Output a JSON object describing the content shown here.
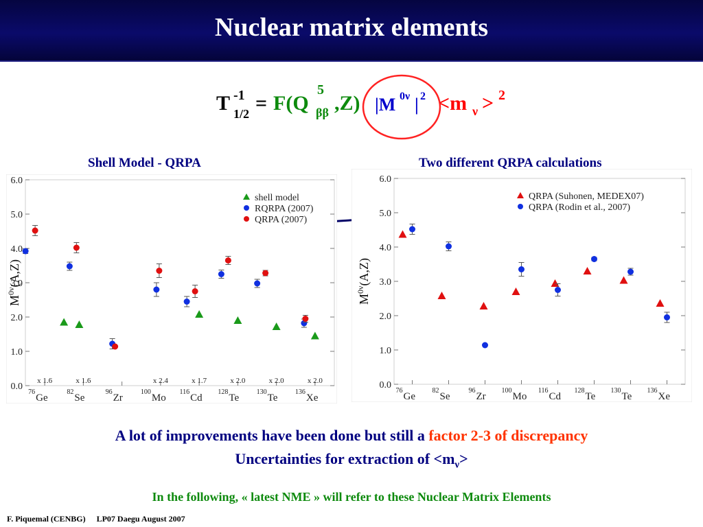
{
  "slide": {
    "title": "Nuclear matrix elements",
    "formula": {
      "T": "T",
      "T_sup": "-1",
      "T_sub": "1/2",
      "eq": "=",
      "F_open": "F(Q",
      "F_sub": "ββ",
      "F_close": ",Z)",
      "F_sup": "5",
      "M_open": "|M",
      "M_sup": "0ν",
      "M_close": "|",
      "M_sq": "2",
      "m_open": "<m",
      "m_sub": "ν",
      "m_close": ">",
      "m_sq": "2"
    },
    "caption_left": "Shell Model - QRPA",
    "caption_right": "Two different QRPA calculations",
    "bottom": {
      "line1_a": "A lot of improvements have been done but still a ",
      "line1_b": "factor 2-3 of discrepancy",
      "line2_a": "Uncertainties for extraction of <m",
      "line2_sub": "ν",
      "line2_b": ">",
      "line3": "In the following, « latest NME » will refer to these Nuclear Matrix Elements"
    },
    "footer": {
      "author": "F. Piquemal (CENBG)",
      "conf": "LP07 Daegu August 2007"
    },
    "colors": {
      "header": "#0a0a6a",
      "green": "#0d8a0d",
      "blue": "#0000cc",
      "red": "#ff0000",
      "navy": "#000080"
    }
  },
  "chart_data": [
    {
      "type": "scatter",
      "ylabel_main": "M",
      "ylabel_sup": "0ν",
      "ylabel_rest": "(A,Z)",
      "ylim": [
        0.0,
        6.0
      ],
      "yticks": [
        "0.0",
        "1.0",
        "2.0",
        "3.0",
        "4.0",
        "5.0",
        "6.0"
      ],
      "categories": [
        {
          "mass": "76",
          "el": "Ge"
        },
        {
          "mass": "82",
          "el": "Se"
        },
        {
          "mass": "96",
          "el": "Zr"
        },
        {
          "mass": "100",
          "el": "Mo"
        },
        {
          "mass": "116",
          "el": "Cd"
        },
        {
          "mass": "128",
          "el": "Te"
        },
        {
          "mass": "130",
          "el": "Te"
        },
        {
          "mass": "136",
          "el": "Xe"
        }
      ],
      "multipliers": [
        "x 1.6",
        "x 1.6",
        "",
        "x 2.4",
        "x 1.7",
        "x 2.0",
        "x 2.0",
        "x 2.0"
      ],
      "legend": [
        "shell model",
        "RQRPA (2007)",
        "QRPA (2007)"
      ],
      "series": [
        {
          "name": "shell model",
          "marker": "triangle",
          "color": "#1a9a1a",
          "points": [
            {
              "x": 0,
              "y": 1.85,
              "err": 0
            },
            {
              "x": 1,
              "y": 1.78,
              "err": 0
            },
            {
              "x": 4,
              "y": 2.08,
              "err": 0
            },
            {
              "x": 5,
              "y": 1.9,
              "err": 0
            },
            {
              "x": 6,
              "y": 1.72,
              "err": 0
            },
            {
              "x": 7,
              "y": 1.45,
              "err": 0
            }
          ]
        },
        {
          "name": "RQRPA (2007)",
          "marker": "circle",
          "color": "#1030e0",
          "points": [
            {
              "x": 0,
              "y": 3.92,
              "err": 0.07
            },
            {
              "x": 1,
              "y": 3.48,
              "err": 0.12
            },
            {
              "x": 2,
              "y": 1.22,
              "err": 0.15
            },
            {
              "x": 3,
              "y": 2.8,
              "err": 0.2
            },
            {
              "x": 4,
              "y": 2.45,
              "err": 0.15
            },
            {
              "x": 5,
              "y": 3.25,
              "err": 0.12
            },
            {
              "x": 6,
              "y": 2.98,
              "err": 0.12
            },
            {
              "x": 7,
              "y": 1.82,
              "err": 0.12
            }
          ]
        },
        {
          "name": "QRPA (2007)",
          "marker": "circle",
          "color": "#e01010",
          "points": [
            {
              "x": 0,
              "y": 4.52,
              "err": 0.15
            },
            {
              "x": 1,
              "y": 4.02,
              "err": 0.15
            },
            {
              "x": 2,
              "y": 1.14,
              "err": 0
            },
            {
              "x": 3,
              "y": 3.35,
              "err": 0.2
            },
            {
              "x": 4,
              "y": 2.75,
              "err": 0.18
            },
            {
              "x": 5,
              "y": 3.65,
              "err": 0.12
            },
            {
              "x": 6,
              "y": 3.28,
              "err": 0.08
            },
            {
              "x": 7,
              "y": 1.95,
              "err": 0.1
            }
          ]
        }
      ]
    },
    {
      "type": "scatter",
      "ylabel_main": "M",
      "ylabel_sup": "0ν",
      "ylabel_rest": "(A,Z)",
      "ylim": [
        0.0,
        6.0
      ],
      "yticks": [
        "0.0",
        "1.0",
        "2.0",
        "3.0",
        "4.0",
        "5.0",
        "6.0"
      ],
      "categories": [
        {
          "mass": "76",
          "el": "Ge"
        },
        {
          "mass": "82",
          "el": "Se"
        },
        {
          "mass": "96",
          "el": "Zr"
        },
        {
          "mass": "100",
          "el": "Mo"
        },
        {
          "mass": "116",
          "el": "Cd"
        },
        {
          "mass": "128",
          "el": "Te"
        },
        {
          "mass": "130",
          "el": "Te"
        },
        {
          "mass": "136",
          "el": "Xe"
        }
      ],
      "legend": [
        "QRPA (Suhonen, MEDEX07)",
        "QRPA (Rodin et al., 2007)"
      ],
      "series": [
        {
          "name": "QRPA (Suhonen, MEDEX07)",
          "marker": "triangle",
          "color": "#e01010",
          "points": [
            {
              "x": 0,
              "y": 4.37,
              "err": 0
            },
            {
              "x": 1,
              "y": 2.58,
              "err": 0
            },
            {
              "x": 2,
              "y": 2.28,
              "err": 0
            },
            {
              "x": 3,
              "y": 2.7,
              "err": 0
            },
            {
              "x": 4,
              "y": 2.94,
              "err": 0
            },
            {
              "x": 5,
              "y": 3.3,
              "err": 0
            },
            {
              "x": 6,
              "y": 3.03,
              "err": 0
            },
            {
              "x": 7,
              "y": 2.36,
              "err": 0
            }
          ]
        },
        {
          "name": "QRPA (Rodin et al., 2007)",
          "marker": "circle",
          "color": "#1030e0",
          "points": [
            {
              "x": 0,
              "y": 4.52,
              "err": 0.15
            },
            {
              "x": 1,
              "y": 4.02,
              "err": 0.13
            },
            {
              "x": 2,
              "y": 1.14,
              "err": 0
            },
            {
              "x": 3,
              "y": 3.35,
              "err": 0.2
            },
            {
              "x": 4,
              "y": 2.75,
              "err": 0.18
            },
            {
              "x": 5,
              "y": 3.65,
              "err": 0.05
            },
            {
              "x": 6,
              "y": 3.28,
              "err": 0.1
            },
            {
              "x": 7,
              "y": 1.95,
              "err": 0.15
            }
          ]
        }
      ]
    }
  ]
}
